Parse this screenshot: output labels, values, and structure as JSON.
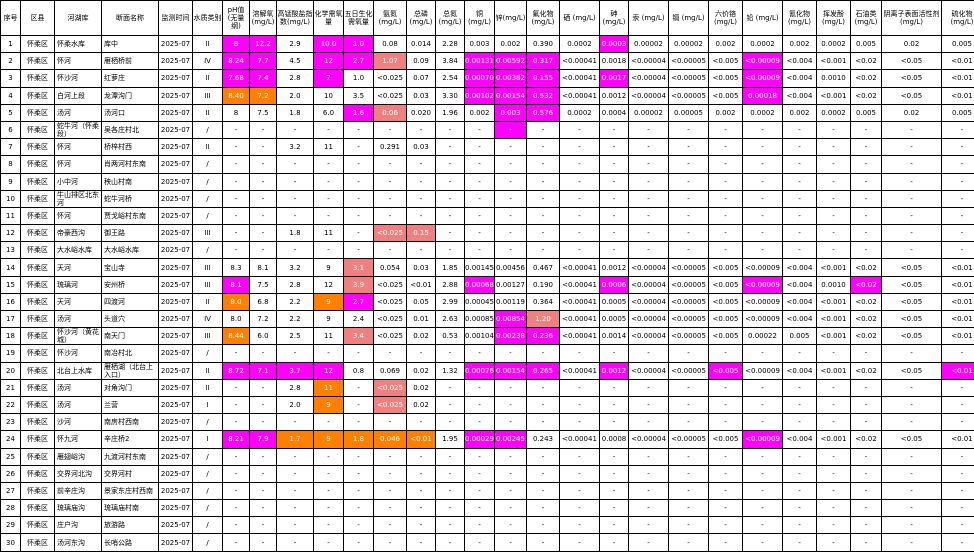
{
  "headers": [
    "序号",
    "区县",
    "河湖库",
    "断面名称",
    "监测时间",
    "水质类别",
    "pH值(无量纲)",
    "溶解氧(mg/L)",
    "高锰酸盐指数(mg/L)",
    "化学需氧量",
    "五日生化需氧量",
    "氨氮(mg/L)",
    "总磷(mg/L)",
    "总氮(mg/L)",
    "铜(mg/L)",
    "锌(mg/L)",
    "氟化物(mg/L)",
    "硒 (mg/L)",
    "砷(mg/L)",
    "汞 (mg/L)",
    "镉 (mg/L)",
    "六价铬(mg/L)",
    "铅 (mg/L)",
    "氰化物(mg/L)",
    "挥发酚(mg/L)",
    "石油类(mg/L)",
    "阴离子表面活性剂(mg/L)",
    "硫化物(mg/L)"
  ],
  "rows": [
    [
      "1",
      "怀柔区",
      "怀柔水库",
      "库中",
      "2025-07",
      "II",
      "8",
      "12.2",
      "2.9",
      "10.0",
      "1.0",
      "0.08",
      "0.014",
      "2.28",
      "0.003",
      "0.002",
      "0.390",
      "0.0002",
      "0.0003",
      "0.00002",
      "0.00002",
      "0.002",
      "0.0002",
      "0.002",
      "0.0002",
      "0.005",
      "0.02",
      "0.005"
    ],
    [
      "2",
      "怀柔区",
      "怀河",
      "雁栖桥前",
      "2025-07",
      "IV",
      "8.24",
      "7.7",
      "4.5",
      "12",
      "2.7",
      "1.07",
      "0.09",
      "3.84",
      "0.00131",
      "0.00592",
      "0.317",
      "<0.00041",
      "0.0018",
      "<0.00004",
      "<0.00005",
      "<0.005",
      "<0.00009",
      "<0.004",
      "<0.001",
      "<0.02",
      "<0.05",
      "<0.01"
    ],
    [
      "3",
      "怀柔区",
      "怀沙河",
      "红萝庄",
      "2025-07",
      "II",
      "7.68",
      "7.4",
      "2.8",
      "7",
      "1.0",
      "<0.025",
      "0.07",
      "2.54",
      "0.00070",
      "0.00382",
      "0.155",
      "<0.00041",
      "0.0017",
      "<0.00004",
      "<0.00005",
      "<0.005",
      "<0.00009",
      "<0.004",
      "0.0010",
      "<0.02",
      "<0.05",
      "<0.01"
    ],
    [
      "4",
      "怀柔区",
      "白河上段",
      "龙潭沟门",
      "2025-07",
      "III",
      "8.40",
      "7.2",
      "2.0",
      "10",
      "3.5",
      "<0.025",
      "0.03",
      "3.30",
      "0.00102",
      "0.00154",
      "0.532",
      "<0.00041",
      "0.0012",
      "<0.00004",
      "<0.00005",
      "<0.005",
      "0.00018",
      "<0.004",
      "<0.001",
      "<0.02",
      "<0.05",
      "<0.01"
    ],
    [
      "5",
      "怀柔区",
      "汤河",
      "汤河口",
      "2025-07",
      "II",
      "8",
      "7.5",
      "1.8",
      "6.0",
      "1.6",
      "0.06",
      "0.020",
      "1.96",
      "0.002",
      "0.003",
      "0.576",
      "0.0002",
      "0.0004",
      "0.00002",
      "0.00005",
      "0.002",
      "0.0002",
      "0.002",
      "0.0002",
      "0.005",
      "0.02",
      "0.005"
    ],
    [
      "6",
      "怀柔区",
      "蛇牛河（怀柔段）",
      "吴各庄村北",
      "2025-07",
      "/",
      "-",
      "-",
      "-",
      "-",
      "-",
      "-",
      "-",
      "-",
      "-",
      "-",
      "-",
      "-",
      "-",
      "-",
      "-",
      "-",
      "-",
      "-",
      "-",
      "-",
      "-",
      "-"
    ],
    [
      "7",
      "怀柔区",
      "怀河",
      "桥梓村西",
      "2025-07",
      "II",
      "-",
      "-",
      "3.2",
      "11",
      "-",
      "0.291",
      "0.03",
      "-",
      "-",
      "-",
      "-",
      "-",
      "-",
      "-",
      "-",
      "-",
      "-",
      "-",
      "-",
      "-",
      "-",
      "-"
    ],
    [
      "8",
      "怀柔区",
      "怀河",
      "肖两河村东南",
      "2025-07",
      "/",
      "-",
      "-",
      "-",
      "-",
      "-",
      "-",
      "-",
      "-",
      "-",
      "-",
      "-",
      "-",
      "-",
      "-",
      "-",
      "-",
      "-",
      "-",
      "-",
      "-",
      "-",
      "-"
    ],
    [
      "9",
      "怀柔区",
      "小中河",
      "秧山村南",
      "2025-07",
      "/",
      "-",
      "-",
      "-",
      "-",
      "-",
      "-",
      "-",
      "-",
      "-",
      "-",
      "-",
      "-",
      "-",
      "-",
      "-",
      "-",
      "-",
      "-",
      "-",
      "-",
      "-",
      "-"
    ],
    [
      "10",
      "怀柔区",
      "牛山排区北东河",
      "蛇牛河桥",
      "2025-07",
      "/",
      "-",
      "-",
      "-",
      "-",
      "-",
      "-",
      "-",
      "-",
      "-",
      "-",
      "-",
      "-",
      "-",
      "-",
      "-",
      "-",
      "-",
      "-",
      "-",
      "-",
      "-",
      "-"
    ],
    [
      "11",
      "怀柔区",
      "怀河",
      "贾戈峪村东南",
      "2025-07",
      "/",
      "-",
      "-",
      "-",
      "-",
      "-",
      "-",
      "-",
      "-",
      "-",
      "-",
      "-",
      "-",
      "-",
      "-",
      "-",
      "-",
      "-",
      "-",
      "-",
      "-",
      "-",
      "-"
    ],
    [
      "12",
      "怀柔区",
      "帝豪西沟",
      "御王路",
      "2025-07",
      "III",
      "-",
      "-",
      "1.8",
      "11",
      "-",
      "<0.025",
      "0.15",
      "-",
      "-",
      "-",
      "-",
      "-",
      "-",
      "-",
      "-",
      "-",
      "-",
      "-",
      "-",
      "-",
      "-",
      "-"
    ],
    [
      "13",
      "怀柔区",
      "大水峪水库",
      "大水峪水库",
      "2025-07",
      "/",
      "-",
      "-",
      "-",
      "-",
      "-",
      "-",
      "-",
      "-",
      "-",
      "-",
      "-",
      "-",
      "-",
      "-",
      "-",
      "-",
      "-",
      "-",
      "-",
      "-",
      "-",
      "-"
    ],
    [
      "14",
      "怀柔区",
      "天河",
      "宝山寺",
      "2025-07",
      "III",
      "8.3",
      "8.1",
      "3.2",
      "9",
      "3.1",
      "0.054",
      "0.03",
      "1.85",
      "0.00145",
      "0.00456",
      "0.467",
      "<0.00041",
      "0.0012",
      "<0.00004",
      "<0.00005",
      "<0.005",
      "<0.00009",
      "<0.004",
      "<0.001",
      "<0.02",
      "<0.05",
      "<0.01"
    ],
    [
      "15",
      "怀柔区",
      "琉璃河",
      "安州桥",
      "2025-07",
      "III",
      "8.1",
      "7.5",
      "2.8",
      "12",
      "3.9",
      "<0.025",
      "<0.01",
      "2.88",
      "0.00068",
      "0.00127",
      "0.190",
      "<0.00041",
      "0.0006",
      "<0.00004",
      "<0.00005",
      "<0.005",
      "<0.00009",
      "<0.004",
      "0.0010",
      "<0.02",
      "<0.05",
      "<0.01"
    ],
    [
      "16",
      "怀柔区",
      "天河",
      "四渡河",
      "2025-07",
      "II",
      "8.0",
      "6.8",
      "2.2",
      "9",
      "2.7",
      "<0.025",
      "0.05",
      "2.99",
      "0.00045",
      "0.00119",
      "0.364",
      "<0.00041",
      "0.0005",
      "<0.00004",
      "<0.00005",
      "<0.005",
      "<0.00009",
      "<0.004",
      "<0.001",
      "<0.02",
      "<0.05",
      "<0.01"
    ],
    [
      "17",
      "怀柔区",
      "汤河",
      "头道穴",
      "2025-07",
      "IV",
      "8.0",
      "7.2",
      "2.2",
      "9",
      "2.4",
      "<0.025",
      "0.01",
      "2.63",
      "0.00085",
      "0.00854",
      "1.20",
      "<0.00041",
      "0.0005",
      "<0.00004",
      "<0.00005",
      "<0.005",
      "<0.00009",
      "<0.004",
      "<0.001",
      "<0.02",
      "<0.05",
      "<0.01"
    ],
    [
      "18",
      "怀柔区",
      "怀沙河（黄花城）",
      "南天门",
      "2025-07",
      "III",
      "8.44",
      "6.0",
      "2.5",
      "11",
      "3.4",
      "<0.025",
      "0.02",
      "0.53",
      "0.00104",
      "0.00238",
      "0.236",
      "<0.00041",
      "0.0014",
      "<0.00004",
      "<0.00005",
      "<0.005",
      "0.00022",
      "0.005",
      "<0.001",
      "<0.02",
      "<0.05",
      "<0.01"
    ],
    [
      "19",
      "怀柔区",
      "怀沙河",
      "南冶村北",
      "2025-07",
      "/",
      "-",
      "-",
      "-",
      "-",
      "-",
      "-",
      "-",
      "-",
      "-",
      "-",
      "-",
      "-",
      "-",
      "-",
      "-",
      "-",
      "-",
      "-",
      "-",
      "-",
      "-",
      "-"
    ],
    [
      "20",
      "怀柔区",
      "北台上水库",
      "雁栖湖（北台上入口）",
      "2025-07",
      "II",
      "8.72",
      "7.1",
      "3.7",
      "12",
      "0.8",
      "0.069",
      "0.02",
      "1.32",
      "0.00076",
      "0.00154",
      "0.265",
      "<0.00041",
      "0.0012",
      "<0.00004",
      "<0.00005",
      "<0.005",
      "<0.00009",
      "<0.004",
      "<0.001",
      "<0.02",
      "<0.05",
      "<0.01"
    ],
    [
      "21",
      "怀柔区",
      "汤河",
      "对角沟门",
      "2025-07",
      "II",
      "-",
      "-",
      "2.8",
      "11",
      "-",
      "<0.025",
      "0.02",
      "-",
      "-",
      "-",
      "-",
      "-",
      "-",
      "-",
      "-",
      "-",
      "-",
      "-",
      "-",
      "-",
      "-",
      "-"
    ],
    [
      "22",
      "怀柔区",
      "汤河",
      "兰营",
      "2025-07",
      "I",
      "-",
      "-",
      "2.0",
      "9",
      "-",
      "<0.025",
      "0.02",
      "-",
      "-",
      "-",
      "-",
      "-",
      "-",
      "-",
      "-",
      "-",
      "-",
      "-",
      "-",
      "-",
      "-",
      "-"
    ],
    [
      "23",
      "怀柔区",
      "沙河",
      "南房村西南",
      "2025-07",
      "/",
      "-",
      "-",
      "-",
      "-",
      "-",
      "-",
      "-",
      "-",
      "-",
      "-",
      "-",
      "-",
      "-",
      "-",
      "-",
      "-",
      "-",
      "-",
      "-",
      "-",
      "-",
      "-"
    ],
    [
      "24",
      "怀柔区",
      "怀九河",
      "辛庄桥2",
      "2025-07",
      "I",
      "8.21",
      "7.9",
      "1.7",
      "9",
      "1.8",
      "0.046",
      "<0.01",
      "1.95",
      "0.00029",
      "0.00245",
      "0.243",
      "<0.00041",
      "0.0008",
      "<0.00004",
      "<0.00005",
      "<0.005",
      "<0.00009",
      "<0.004",
      "<0.001",
      "<0.02",
      "<0.05",
      "<0.01"
    ],
    [
      "25",
      "怀柔区",
      "雁翅峪沟",
      "九渡河村东南",
      "2025-07",
      "/",
      "-",
      "-",
      "-",
      "-",
      "-",
      "-",
      "-",
      "-",
      "-",
      "-",
      "-",
      "-",
      "-",
      "-",
      "-",
      "-",
      "-",
      "-",
      "-",
      "-",
      "-",
      "-"
    ],
    [
      "26",
      "怀柔区",
      "交界河北沟",
      "交界河村",
      "2025-07",
      "/",
      "-",
      "-",
      "-",
      "-",
      "-",
      "-",
      "-",
      "-",
      "-",
      "-",
      "-",
      "-",
      "-",
      "-",
      "-",
      "-",
      "-",
      "-",
      "-",
      "-",
      "-",
      "-"
    ],
    [
      "27",
      "怀柔区",
      "前辛庄沟",
      "景家东庄村西南",
      "2025-07",
      "/",
      "-",
      "-",
      "-",
      "-",
      "-",
      "-",
      "-",
      "-",
      "-",
      "-",
      "-",
      "-",
      "-",
      "-",
      "-",
      "-",
      "-",
      "-",
      "-",
      "-",
      "-",
      "-"
    ],
    [
      "28",
      "怀柔区",
      "琉璃庙沟",
      "琉璃庙村南",
      "2025-07",
      "/",
      "-",
      "-",
      "-",
      "-",
      "-",
      "-",
      "-",
      "-",
      "-",
      "-",
      "-",
      "-",
      "-",
      "-",
      "-",
      "-",
      "-",
      "-",
      "-",
      "-",
      "-",
      "-"
    ],
    [
      "29",
      "怀柔区",
      "庄户沟",
      "旅游路",
      "2025-07",
      "/",
      "-",
      "-",
      "-",
      "-",
      "-",
      "-",
      "-",
      "-",
      "-",
      "-",
      "-",
      "-",
      "-",
      "-",
      "-",
      "-",
      "-",
      "-",
      "-",
      "-",
      "-",
      "-"
    ],
    [
      "30",
      "怀柔区",
      "汤河东沟",
      "长哨公路",
      "2025-07",
      "/",
      "-",
      "-",
      "-",
      "-",
      "-",
      "-",
      "-",
      "-",
      "-",
      "-",
      "-",
      "-",
      "-",
      "-",
      "-",
      "-",
      "-",
      "-",
      "-",
      "-",
      "-",
      "-"
    ]
  ],
  "highlights": {
    "magenta": [
      "0.6",
      "0.7",
      "0.9",
      "0.10",
      "0.18",
      "1.6",
      "1.7",
      "1.9",
      "1.10",
      "1.14",
      "1.15",
      "1.16",
      "1.22",
      "2.6",
      "2.7",
      "2.9",
      "2.14",
      "2.15",
      "2.16",
      "2.18",
      "2.22",
      "3.6",
      "3.7",
      "3.14",
      "3.15",
      "3.16",
      "3.22",
      "4.10",
      "4.11",
      "4.15",
      "4.16",
      "5.15",
      "14.6",
      "14.14",
      "14.18",
      "14.22",
      "14.25",
      "15.10",
      "16.15",
      "17.15",
      "17.16",
      "19.6",
      "19.7",
      "19.8",
      "19.9",
      "19.14",
      "19.15",
      "19.16",
      "19.18",
      "19.21",
      "19.27",
      "23.6",
      "23.7",
      "23.14",
      "23.15",
      "23.22"
    ],
    "orange": [
      "3.6",
      "3.7",
      "15.6",
      "15.9",
      "17.6",
      "20.9",
      "21.9",
      "23.8",
      "23.9",
      "23.10",
      "23.11",
      "23.12"
    ],
    "salmon": [
      "1.11",
      "11.11",
      "11.12",
      "13.10",
      "14.10",
      "16.16",
      "17.10",
      "20.11",
      "21.11",
      "4.11"
    ]
  }
}
